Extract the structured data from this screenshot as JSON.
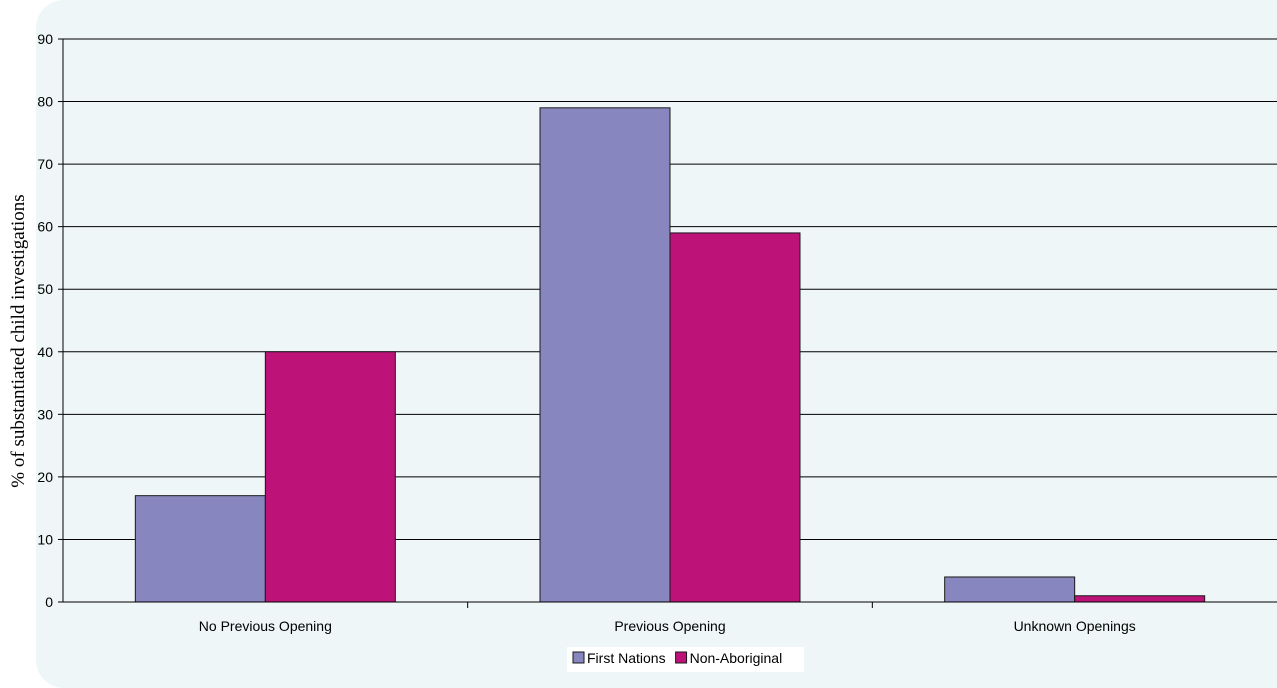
{
  "chart_data": {
    "type": "bar",
    "title": "",
    "xlabel": "",
    "ylabel": "% of substantiated child investigations",
    "ylim": [
      0,
      90
    ],
    "yticks": [
      0,
      10,
      20,
      30,
      40,
      50,
      60,
      70,
      80,
      90
    ],
    "grid": true,
    "legend_position": "bottom",
    "categories": [
      "No Previous Opening",
      "Previous Opening",
      "Unknown Openings"
    ],
    "series": [
      {
        "name": "First Nations",
        "color": "#8886be",
        "values": [
          17,
          79,
          4
        ]
      },
      {
        "name": "Non-Aboriginal",
        "color": "#bd1278",
        "values": [
          40,
          59,
          1
        ]
      }
    ]
  }
}
